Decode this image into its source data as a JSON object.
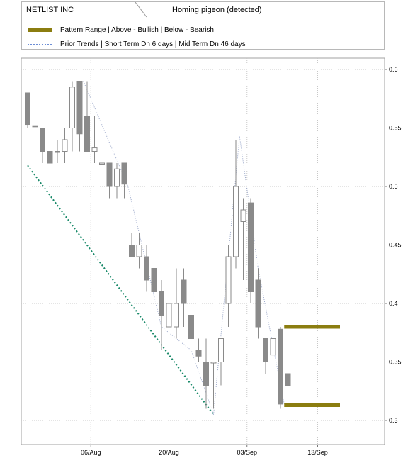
{
  "legend": {
    "symbol": "NETLIST INC",
    "pattern": "Homing pigeon (detected)",
    "range_label": "Pattern Range | Above - Bullish | Below - Bearish",
    "trend_label": "Prior Trends | Short Term Dn 6 days | Mid Term Dn 46 days",
    "range_color": "#8b7d10",
    "trend_color": "#6d8ed6"
  },
  "chart_data": {
    "type": "candlestick",
    "title": "",
    "ylim": [
      0.29,
      0.61
    ],
    "y_ticks": [
      "0.6",
      "0.55",
      "0.5",
      "0.45",
      "0.4",
      "0.35",
      "0.3"
    ],
    "y_tick_values": [
      0.6,
      0.55,
      0.5,
      0.45,
      0.4,
      0.35,
      0.3
    ],
    "x_tick_labels": [
      "06/Aug",
      "20/Aug",
      "03/Sep",
      "13/Sep"
    ],
    "x_tick_slots": [
      8.5,
      19,
      29.5,
      39
    ],
    "grid": true,
    "up_color": "#ffffff",
    "down_color": "#8a8a8a",
    "candles": [
      {
        "o": 0.58,
        "h": 0.58,
        "l": 0.55,
        "c": 0.553
      },
      {
        "o": 0.552,
        "h": 0.58,
        "l": 0.55,
        "c": 0.551
      },
      {
        "o": 0.55,
        "h": 0.55,
        "l": 0.52,
        "c": 0.53
      },
      {
        "o": 0.53,
        "h": 0.56,
        "l": 0.52,
        "c": 0.52
      },
      {
        "o": 0.53,
        "h": 0.54,
        "l": 0.52,
        "c": 0.53
      },
      {
        "o": 0.53,
        "h": 0.55,
        "l": 0.52,
        "c": 0.54
      },
      {
        "o": 0.55,
        "h": 0.59,
        "l": 0.53,
        "c": 0.585
      },
      {
        "o": 0.59,
        "h": 0.59,
        "l": 0.53,
        "c": 0.545
      },
      {
        "o": 0.56,
        "h": 0.59,
        "l": 0.53,
        "c": 0.53
      },
      {
        "o": 0.53,
        "h": 0.56,
        "l": 0.52,
        "c": 0.533
      },
      {
        "o": 0.52,
        "h": 0.52,
        "l": 0.52,
        "c": 0.52
      },
      {
        "o": 0.52,
        "h": 0.52,
        "l": 0.49,
        "c": 0.5
      },
      {
        "o": 0.5,
        "h": 0.52,
        "l": 0.49,
        "c": 0.515
      },
      {
        "o": 0.52,
        "h": 0.52,
        "l": 0.49,
        "c": 0.502
      },
      {
        "o": 0.45,
        "h": 0.46,
        "l": 0.44,
        "c": 0.44
      },
      {
        "o": 0.44,
        "h": 0.46,
        "l": 0.43,
        "c": 0.45
      },
      {
        "o": 0.44,
        "h": 0.45,
        "l": 0.41,
        "c": 0.42
      },
      {
        "o": 0.43,
        "h": 0.44,
        "l": 0.39,
        "c": 0.41
      },
      {
        "o": 0.41,
        "h": 0.42,
        "l": 0.36,
        "c": 0.39
      },
      {
        "o": 0.38,
        "h": 0.41,
        "l": 0.37,
        "c": 0.4
      },
      {
        "o": 0.38,
        "h": 0.43,
        "l": 0.37,
        "c": 0.4
      },
      {
        "o": 0.42,
        "h": 0.43,
        "l": 0.38,
        "c": 0.4
      },
      {
        "o": 0.39,
        "h": 0.39,
        "l": 0.37,
        "c": 0.37
      },
      {
        "o": 0.36,
        "h": 0.37,
        "l": 0.35,
        "c": 0.355
      },
      {
        "o": 0.35,
        "h": 0.37,
        "l": 0.31,
        "c": 0.33
      },
      {
        "o": 0.35,
        "h": 0.35,
        "l": 0.31,
        "c": 0.35
      },
      {
        "o": 0.35,
        "h": 0.37,
        "l": 0.33,
        "c": 0.37
      },
      {
        "o": 0.4,
        "h": 0.45,
        "l": 0.38,
        "c": 0.44
      },
      {
        "o": 0.44,
        "h": 0.54,
        "l": 0.43,
        "c": 0.5
      },
      {
        "o": 0.47,
        "h": 0.49,
        "l": 0.42,
        "c": 0.48
      },
      {
        "o": 0.486,
        "h": 0.49,
        "l": 0.4,
        "c": 0.41
      },
      {
        "o": 0.42,
        "h": 0.43,
        "l": 0.37,
        "c": 0.38
      },
      {
        "o": 0.37,
        "h": 0.37,
        "l": 0.34,
        "c": 0.35
      },
      {
        "o": 0.356,
        "h": 0.37,
        "l": 0.35,
        "c": 0.37
      },
      {
        "o": 0.378,
        "h": 0.38,
        "l": 0.31,
        "c": 0.314
      },
      {
        "o": 0.34,
        "h": 0.34,
        "l": 0.32,
        "c": 0.33
      }
    ],
    "pattern_range": {
      "high": 0.38,
      "low": 0.313,
      "from_slot": 34.5,
      "to_slot": 42
    },
    "short_trend": [
      [
        7.5,
        0.59
      ],
      [
        13.5,
        0.5
      ],
      [
        18,
        0.38
      ],
      [
        22,
        0.36
      ],
      [
        25,
        0.305
      ]
    ],
    "mid_trend": [
      [
        0,
        0.518
      ],
      [
        25,
        0.305
      ]
    ],
    "recent_trend": [
      [
        25,
        0.305
      ],
      [
        28.5,
        0.543
      ],
      [
        31,
        0.43
      ],
      [
        34.5,
        0.314
      ]
    ]
  }
}
